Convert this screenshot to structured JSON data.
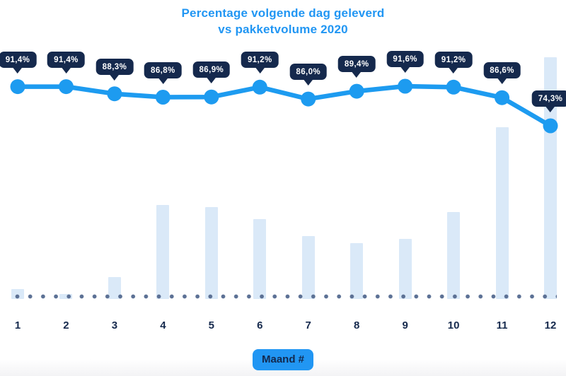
{
  "title": {
    "line1": "Percentage volgende dag geleverd",
    "line2": "vs pakketvolume 2020"
  },
  "xaxis": {
    "title": "Maand #",
    "labels": [
      "1",
      "2",
      "3",
      "4",
      "5",
      "6",
      "7",
      "8",
      "9",
      "10",
      "11",
      "12"
    ]
  },
  "colors": {
    "title_text": "#2196F3",
    "line": "#1D9BF0",
    "marker": "#1D9BF0",
    "bar_fill": "#DAE9F8",
    "tooltip_bg": "#15294D",
    "tooltip_text": "#FFFFFF",
    "dotted_line": "#5C7195",
    "axis_label_text": "#15294D",
    "xaxis_badge_bg": "#2196F3",
    "xaxis_badge_text": "#13294E"
  },
  "chart_data": {
    "type": "combo",
    "title": "Percentage volgende dag geleverd vs pakketvolume 2020",
    "xlabel": "Maand #",
    "ylabel": "",
    "legend": "none",
    "grid": false,
    "y_axis_visible": false,
    "categories": [
      "1",
      "2",
      "3",
      "4",
      "5",
      "6",
      "7",
      "8",
      "9",
      "10",
      "11",
      "12"
    ],
    "series": [
      {
        "name": "Percentage volgende dag geleverd",
        "type": "line",
        "unit": "%",
        "values": [
          91.4,
          91.4,
          88.3,
          86.8,
          86.9,
          91.2,
          86.0,
          89.4,
          91.6,
          91.2,
          86.6,
          74.3
        ],
        "point_labels": [
          "91,4%",
          "91,4%",
          "88,3%",
          "86,8%",
          "86,9%",
          "91,2%",
          "86,0%",
          "89,4%",
          "91,6%",
          "91,2%",
          "86,6%",
          "74,3%"
        ]
      },
      {
        "name": "Pakketvolume 2020",
        "type": "bar",
        "unit": "relative volume, estimated from bar heights (max month = 100)",
        "values": [
          4,
          2,
          9,
          39,
          38,
          33,
          26,
          23,
          25,
          36,
          71,
          100
        ]
      }
    ]
  }
}
